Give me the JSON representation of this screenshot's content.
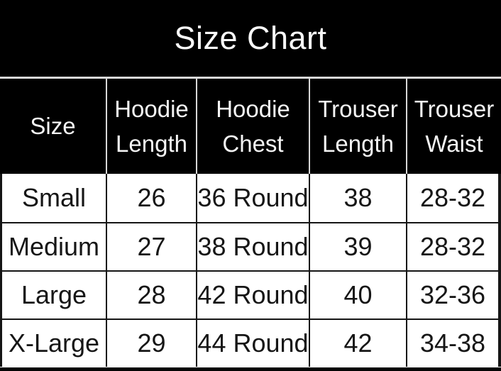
{
  "title": "Size Chart",
  "table": {
    "columns": [
      {
        "id": "size",
        "label": "Size"
      },
      {
        "id": "hoodie-length",
        "label": "Hoodie Length"
      },
      {
        "id": "hoodie-chest",
        "label": "Hoodie Chest"
      },
      {
        "id": "trouser-length",
        "label": "Trouser Length"
      },
      {
        "id": "trouser-waist",
        "label": "Trouser Waist"
      }
    ],
    "rows": [
      [
        "Small",
        "26",
        "36 Round",
        "38",
        "28-32"
      ],
      [
        "Medium",
        "27",
        "38 Round",
        "39",
        "28-32"
      ],
      [
        "Large",
        "28",
        "42 Round",
        "40",
        "32-36"
      ],
      [
        "X-Large",
        "29",
        "44 Round",
        "42",
        "34-38"
      ]
    ]
  },
  "colors": {
    "banner_background": "#000000",
    "banner_text": "#f8f8f8",
    "light_separator": "#d8d8d8",
    "body_text": "#161616",
    "grid_line": "#151515",
    "row_background": "#ffffff"
  },
  "chart_data": {
    "type": "table",
    "title": "Size Chart",
    "columns": [
      "Size",
      "Hoodie Length",
      "Hoodie Chest",
      "Trouser Length",
      "Trouser Waist"
    ],
    "rows": [
      [
        "Small",
        "26",
        "36 Round",
        "38",
        "28-32"
      ],
      [
        "Medium",
        "27",
        "38 Round",
        "39",
        "28-32"
      ],
      [
        "Large",
        "28",
        "42 Round",
        "40",
        "32-36"
      ],
      [
        "X-Large",
        "29",
        "44 Round",
        "42",
        "34-38"
      ]
    ]
  }
}
